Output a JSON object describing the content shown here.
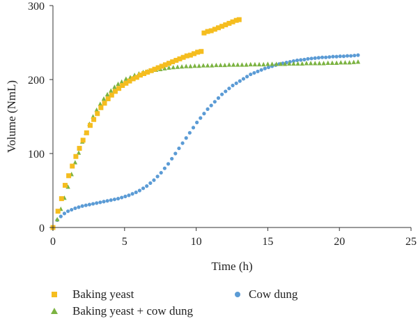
{
  "chart_data": {
    "type": "scatter",
    "title": "",
    "xlabel": "Time (h)",
    "ylabel": "Volume (NmL)",
    "xlim": [
      0,
      25
    ],
    "ylim": [
      0,
      300
    ],
    "xticks": [
      "0",
      "5",
      "10",
      "15",
      "20",
      "25"
    ],
    "yticks": [
      "0",
      "100",
      "200",
      "300"
    ],
    "grid": false,
    "legend_position": "bottom",
    "series": [
      {
        "name": "Baking yeast",
        "color": "#f5bd1f",
        "marker": "square",
        "points": [
          [
            0,
            0
          ],
          [
            0.35,
            22
          ],
          [
            0.6,
            39
          ],
          [
            0.85,
            57
          ],
          [
            1.1,
            70
          ],
          [
            1.35,
            83
          ],
          [
            1.6,
            96
          ],
          [
            1.85,
            107
          ],
          [
            2.1,
            118
          ],
          [
            2.35,
            128
          ],
          [
            2.6,
            138
          ],
          [
            2.85,
            146
          ],
          [
            3.1,
            154
          ],
          [
            3.35,
            162
          ],
          [
            3.6,
            168
          ],
          [
            3.85,
            174
          ],
          [
            4.1,
            179
          ],
          [
            4.35,
            184
          ],
          [
            4.6,
            188
          ],
          [
            4.85,
            192
          ],
          [
            5.1,
            195
          ],
          [
            5.35,
            198
          ],
          [
            5.6,
            201
          ],
          [
            5.85,
            203
          ],
          [
            6.1,
            206
          ],
          [
            6.35,
            208
          ],
          [
            6.6,
            210
          ],
          [
            6.85,
            212
          ],
          [
            7.1,
            214
          ],
          [
            7.35,
            216
          ],
          [
            7.6,
            218
          ],
          [
            7.85,
            220
          ],
          [
            8.1,
            222
          ],
          [
            8.35,
            224
          ],
          [
            8.6,
            226
          ],
          [
            8.85,
            228
          ],
          [
            9.1,
            230
          ],
          [
            9.35,
            232
          ],
          [
            9.6,
            233
          ],
          [
            9.85,
            235
          ],
          [
            10.1,
            237
          ],
          [
            10.35,
            238
          ],
          [
            10.55,
            263
          ],
          [
            10.8,
            265
          ],
          [
            11.05,
            266
          ],
          [
            11.3,
            268
          ],
          [
            11.55,
            270
          ],
          [
            11.8,
            272
          ],
          [
            12.05,
            274
          ],
          [
            12.3,
            276
          ],
          [
            12.55,
            278
          ],
          [
            12.8,
            280
          ],
          [
            13.0,
            281
          ]
        ]
      },
      {
        "name": "Baking yeast + cow dung",
        "color": "#7cb342",
        "marker": "triangle",
        "points": [
          [
            0,
            0
          ],
          [
            0.3,
            11
          ],
          [
            0.55,
            25
          ],
          [
            0.8,
            40
          ],
          [
            1.05,
            55
          ],
          [
            1.3,
            72
          ],
          [
            1.55,
            88
          ],
          [
            1.8,
            101
          ],
          [
            2.05,
            116
          ],
          [
            2.3,
            128
          ],
          [
            2.55,
            140
          ],
          [
            2.8,
            150
          ],
          [
            3.05,
            159
          ],
          [
            3.3,
            167
          ],
          [
            3.55,
            174
          ],
          [
            3.8,
            180
          ],
          [
            4.05,
            185
          ],
          [
            4.3,
            190
          ],
          [
            4.55,
            194
          ],
          [
            4.8,
            197
          ],
          [
            5.1,
            201
          ],
          [
            5.4,
            203
          ],
          [
            5.7,
            206
          ],
          [
            6.0,
            208
          ],
          [
            6.3,
            210
          ],
          [
            6.6,
            211
          ],
          [
            6.9,
            212
          ],
          [
            7.2,
            213
          ],
          [
            7.5,
            214
          ],
          [
            7.8,
            215
          ],
          [
            8.1,
            216
          ],
          [
            8.4,
            216.5
          ],
          [
            8.7,
            217
          ],
          [
            9.0,
            217.5
          ],
          [
            9.3,
            218
          ],
          [
            9.6,
            218
          ],
          [
            9.9,
            218.5
          ],
          [
            10.2,
            218.5
          ],
          [
            10.5,
            219
          ],
          [
            10.8,
            219
          ],
          [
            11.1,
            219
          ],
          [
            11.4,
            219.5
          ],
          [
            11.7,
            219.5
          ],
          [
            12.0,
            219.5
          ],
          [
            12.3,
            220
          ],
          [
            12.6,
            220
          ],
          [
            12.9,
            220
          ],
          [
            13.2,
            220
          ],
          [
            13.5,
            220
          ],
          [
            13.8,
            220.5
          ],
          [
            14.1,
            220.5
          ],
          [
            14.4,
            220.5
          ],
          [
            14.7,
            220.5
          ],
          [
            15.0,
            221
          ],
          [
            15.3,
            221
          ],
          [
            15.6,
            221
          ],
          [
            15.9,
            221
          ],
          [
            16.2,
            221
          ],
          [
            16.5,
            221.5
          ],
          [
            16.8,
            221.5
          ],
          [
            17.1,
            221.5
          ],
          [
            17.4,
            221.5
          ],
          [
            17.7,
            222
          ],
          [
            18.0,
            222
          ],
          [
            18.3,
            222
          ],
          [
            18.6,
            222
          ],
          [
            18.9,
            222
          ],
          [
            19.2,
            222.5
          ],
          [
            19.5,
            222.5
          ],
          [
            19.8,
            222.5
          ],
          [
            20.1,
            223
          ],
          [
            20.4,
            223
          ],
          [
            20.7,
            223
          ],
          [
            21.0,
            223.5
          ],
          [
            21.3,
            224
          ]
        ]
      },
      {
        "name": "Cow dung",
        "color": "#5b9bd5",
        "marker": "circle",
        "points": [
          [
            0,
            0
          ],
          [
            0.3,
            10
          ],
          [
            0.55,
            15
          ],
          [
            0.8,
            19
          ],
          [
            1.05,
            22
          ],
          [
            1.3,
            24
          ],
          [
            1.55,
            26
          ],
          [
            1.8,
            27.5
          ],
          [
            2.05,
            29
          ],
          [
            2.3,
            30
          ],
          [
            2.55,
            31
          ],
          [
            2.8,
            32
          ],
          [
            3.05,
            33
          ],
          [
            3.3,
            34
          ],
          [
            3.55,
            35
          ],
          [
            3.8,
            36
          ],
          [
            4.05,
            37
          ],
          [
            4.3,
            38
          ],
          [
            4.55,
            39
          ],
          [
            4.8,
            40.5
          ],
          [
            5.05,
            42
          ],
          [
            5.3,
            43.5
          ],
          [
            5.55,
            45.5
          ],
          [
            5.8,
            47.5
          ],
          [
            6.05,
            50
          ],
          [
            6.3,
            53
          ],
          [
            6.55,
            56
          ],
          [
            6.8,
            60
          ],
          [
            7.05,
            64
          ],
          [
            7.3,
            69
          ],
          [
            7.55,
            74
          ],
          [
            7.8,
            80
          ],
          [
            8.05,
            86
          ],
          [
            8.3,
            93
          ],
          [
            8.55,
            100
          ],
          [
            8.8,
            107
          ],
          [
            9.05,
            114
          ],
          [
            9.3,
            121
          ],
          [
            9.55,
            128
          ],
          [
            9.8,
            135
          ],
          [
            10.05,
            142
          ],
          [
            10.3,
            148
          ],
          [
            10.55,
            154
          ],
          [
            10.8,
            160
          ],
          [
            11.05,
            165
          ],
          [
            11.3,
            170
          ],
          [
            11.55,
            175
          ],
          [
            11.8,
            180
          ],
          [
            12.05,
            184
          ],
          [
            12.3,
            188
          ],
          [
            12.55,
            192
          ],
          [
            12.8,
            195
          ],
          [
            13.05,
            198
          ],
          [
            13.3,
            201
          ],
          [
            13.55,
            204
          ],
          [
            13.8,
            207
          ],
          [
            14.05,
            209
          ],
          [
            14.3,
            211
          ],
          [
            14.55,
            213
          ],
          [
            14.8,
            215
          ],
          [
            15.05,
            216.5
          ],
          [
            15.3,
            218
          ],
          [
            15.55,
            219.5
          ],
          [
            15.8,
            221
          ],
          [
            16.05,
            222
          ],
          [
            16.3,
            223
          ],
          [
            16.55,
            224
          ],
          [
            16.8,
            225
          ],
          [
            17.05,
            226
          ],
          [
            17.3,
            226.5
          ],
          [
            17.55,
            227
          ],
          [
            17.8,
            228
          ],
          [
            18.05,
            228.5
          ],
          [
            18.3,
            229
          ],
          [
            18.55,
            229.5
          ],
          [
            18.8,
            230
          ],
          [
            19.05,
            230
          ],
          [
            19.3,
            230.5
          ],
          [
            19.55,
            231
          ],
          [
            19.8,
            231
          ],
          [
            20.05,
            231.5
          ],
          [
            20.3,
            231.5
          ],
          [
            20.55,
            232
          ],
          [
            20.8,
            232
          ],
          [
            21.05,
            232.5
          ],
          [
            21.3,
            233
          ]
        ]
      }
    ]
  }
}
